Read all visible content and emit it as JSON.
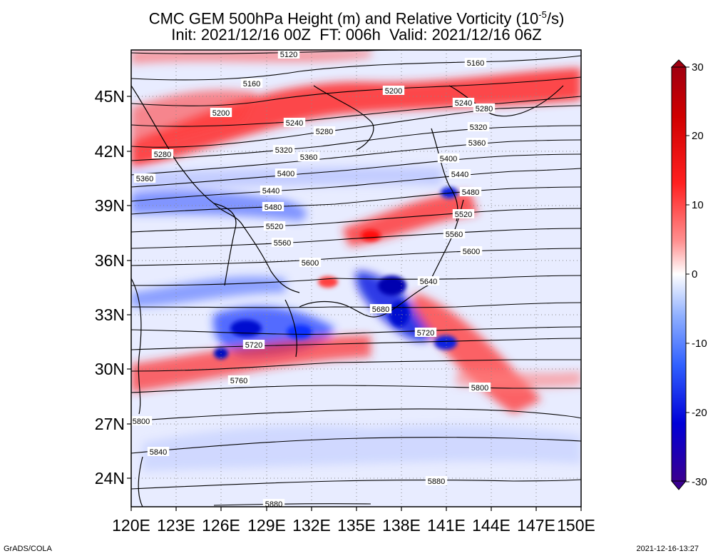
{
  "title": {
    "line1_prefix": "CMC GEM 500hPa Height (m) and Relative Vorticity (10",
    "line1_exponent": "-5",
    "line1_suffix": "/s)",
    "line2": "Init: 2021/12/16 00Z  FT: 006h  Valid: 2021/12/16 06Z"
  },
  "axes": {
    "lon_labels": [
      "120E",
      "123E",
      "126E",
      "129E",
      "132E",
      "135E",
      "138E",
      "141E",
      "144E",
      "147E",
      "150E"
    ],
    "lat_labels": [
      "45N",
      "42N",
      "39N",
      "36N",
      "33N",
      "30N",
      "27N",
      "24N"
    ]
  },
  "colorbar": {
    "ticks": [
      "30",
      "20",
      "10",
      "0",
      "-10",
      "-20",
      "-30"
    ],
    "colors": [
      "#3a0090",
      "#0000d8",
      "#3060ff",
      "#90b0ff",
      "#ffffff",
      "#ff9090",
      "#ff2020",
      "#d00000",
      "#a00010"
    ]
  },
  "contours": [
    {
      "value": "5120",
      "label_positions": [
        [
          405,
          76
        ]
      ]
    },
    {
      "value": "5160",
      "label_positions": [
        [
          353,
          117
        ],
        [
          667,
          88
        ]
      ]
    },
    {
      "value": "5200",
      "label_positions": [
        [
          310,
          158
        ],
        [
          552,
          127
        ]
      ]
    },
    {
      "value": "5240",
      "label_positions": [
        [
          413,
          172
        ],
        [
          650,
          144
        ]
      ]
    },
    {
      "value": "5280",
      "label_positions": [
        [
          228,
          216
        ],
        [
          455,
          184
        ],
        [
          679,
          152
        ]
      ]
    },
    {
      "value": "5320",
      "label_positions": [
        [
          398,
          210
        ],
        [
          671,
          178
        ]
      ]
    },
    {
      "value": "5360",
      "label_positions": [
        [
          203,
          250
        ],
        [
          433,
          220
        ],
        [
          669,
          200
        ]
      ]
    },
    {
      "value": "5400",
      "label_positions": [
        [
          401,
          243
        ],
        [
          629,
          222
        ]
      ]
    },
    {
      "value": "5440",
      "label_positions": [
        [
          380,
          267
        ],
        [
          645,
          244
        ]
      ]
    },
    {
      "value": "5480",
      "label_positions": [
        [
          383,
          290
        ],
        [
          660,
          269
        ]
      ]
    },
    {
      "value": "5520",
      "label_positions": [
        [
          385,
          317
        ],
        [
          650,
          300
        ]
      ]
    },
    {
      "value": "5560",
      "label_positions": [
        [
          396,
          340
        ],
        [
          637,
          328
        ]
      ]
    },
    {
      "value": "5600",
      "label_positions": [
        [
          435,
          368
        ],
        [
          661,
          352
        ]
      ]
    },
    {
      "value": "5640",
      "label_positions": [
        [
          601,
          394
        ]
      ]
    },
    {
      "value": "5680",
      "label_positions": [
        [
          534,
          433
        ]
      ]
    },
    {
      "value": "5720",
      "label_positions": [
        [
          356,
          483
        ],
        [
          597,
          466
        ]
      ]
    },
    {
      "value": "5760",
      "label_positions": [
        [
          335,
          533
        ]
      ]
    },
    {
      "value": "5800",
      "label_positions": [
        [
          198,
          590
        ],
        [
          673,
          543
        ]
      ]
    },
    {
      "value": "5840",
      "label_positions": [
        [
          222,
          633
        ]
      ]
    },
    {
      "value": "5880",
      "label_positions": [
        [
          612,
          674
        ],
        [
          384,
          706
        ]
      ]
    }
  ],
  "footer": {
    "left": "GrADS/COLA",
    "right": "2021-12-16-13:27"
  }
}
